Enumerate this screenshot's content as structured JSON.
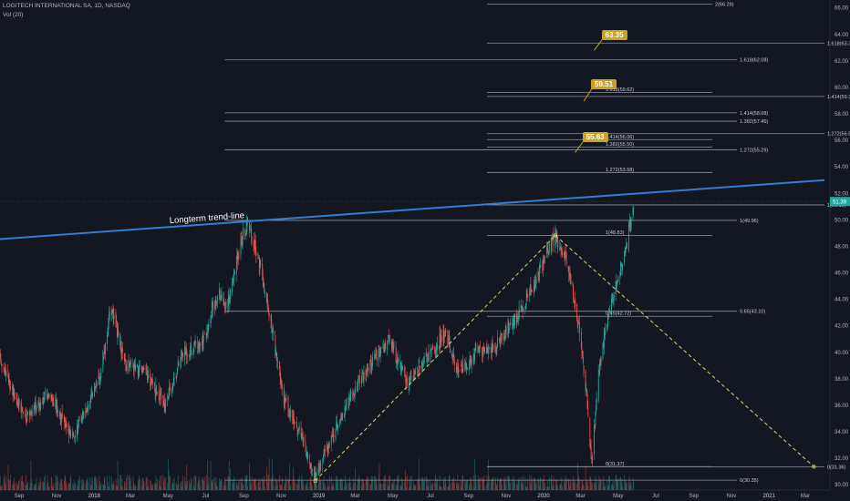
{
  "header": {
    "symbol_line": "LOGITECH INTERNATIONAL SA, 1D, NASDAQ",
    "volume_line": "Vol (20)"
  },
  "colors": {
    "background": "#131722",
    "up": "#26a69a",
    "down": "#ef5350",
    "trend_line": "#2f7fd3",
    "fib_line": "#9aa0a8",
    "callout": "#c9a227",
    "triangle": "#e6d46a",
    "last_price_tag": "#26a69a"
  },
  "chart_data": {
    "type": "candlestick",
    "title": "LOGITECH INTERNATIONAL SA, 1D, NASDAQ",
    "price_axis": {
      "min": 29.6,
      "max": 66.6,
      "ticks": [
        30,
        32,
        34,
        36,
        38,
        40,
        42,
        44,
        46,
        48,
        50,
        52,
        54,
        56,
        58,
        60,
        62,
        64,
        66
      ]
    },
    "time_axis": {
      "labels": [
        "Sep",
        "Nov",
        "2018",
        "Mar",
        "May",
        "Jul",
        "Sep",
        "Nov",
        "2019",
        "Mar",
        "May",
        "Jul",
        "Sep",
        "Nov",
        "2020",
        "Mar",
        "May",
        "Jul",
        "Sep",
        "Nov",
        "2021",
        "Mar"
      ]
    },
    "last_price": {
      "value": 51.39,
      "label": "51.39"
    },
    "price_path": [
      {
        "date": "2017-08-01",
        "close": 39.5
      },
      {
        "date": "2017-09-10",
        "close": 35.0
      },
      {
        "date": "2017-10-20",
        "close": 37.0
      },
      {
        "date": "2017-11-25",
        "close": 33.5
      },
      {
        "date": "2018-01-10",
        "close": 38.0
      },
      {
        "date": "2018-01-28",
        "close": 43.5
      },
      {
        "date": "2018-02-20",
        "close": 39.0
      },
      {
        "date": "2018-03-25",
        "close": 38.5
      },
      {
        "date": "2018-04-25",
        "close": 36.0
      },
      {
        "date": "2018-05-25",
        "close": 40.0
      },
      {
        "date": "2018-06-25",
        "close": 40.5
      },
      {
        "date": "2018-07-20",
        "close": 44.5
      },
      {
        "date": "2018-08-05",
        "close": 43.5
      },
      {
        "date": "2018-08-25",
        "close": 48.0
      },
      {
        "date": "2018-09-07",
        "close": 49.9
      },
      {
        "date": "2018-09-25",
        "close": 47.0
      },
      {
        "date": "2018-10-15",
        "close": 42.0
      },
      {
        "date": "2018-11-05",
        "close": 36.5
      },
      {
        "date": "2018-12-01",
        "close": 34.0
      },
      {
        "date": "2018-12-24",
        "close": 30.5
      },
      {
        "date": "2019-01-25",
        "close": 34.0
      },
      {
        "date": "2019-03-15",
        "close": 38.5
      },
      {
        "date": "2019-04-25",
        "close": 41.0
      },
      {
        "date": "2019-05-25",
        "close": 37.5
      },
      {
        "date": "2019-06-25",
        "close": 39.5
      },
      {
        "date": "2019-07-25",
        "close": 41.5
      },
      {
        "date": "2019-08-15",
        "close": 38.5
      },
      {
        "date": "2019-09-15",
        "close": 40.0
      },
      {
        "date": "2019-10-15",
        "close": 40.5
      },
      {
        "date": "2019-11-15",
        "close": 42.5
      },
      {
        "date": "2019-12-15",
        "close": 45.0
      },
      {
        "date": "2020-01-20",
        "close": 48.8
      },
      {
        "date": "2020-02-10",
        "close": 46.5
      },
      {
        "date": "2020-02-25",
        "close": 42.5
      },
      {
        "date": "2020-03-10",
        "close": 37.0
      },
      {
        "date": "2020-03-19",
        "close": 31.5
      },
      {
        "date": "2020-03-30",
        "close": 38.5
      },
      {
        "date": "2020-04-15",
        "close": 43.0
      },
      {
        "date": "2020-04-30",
        "close": 45.5
      },
      {
        "date": "2020-05-15",
        "close": 48.0
      },
      {
        "date": "2020-05-26",
        "close": 51.4
      }
    ],
    "trend_line": {
      "label": "Longterm trend-line",
      "from": {
        "date": "2017-08-01",
        "price": 48.55
      },
      "to": {
        "date": "2021-04-01",
        "price": 53.0
      }
    },
    "triangle": [
      {
        "date": "2018-12-26",
        "price": 30.3
      },
      {
        "date": "2020-01-20",
        "price": 48.83
      },
      {
        "date": "2021-03-15",
        "price": 31.36
      }
    ],
    "fib_levels": [
      {
        "label": "2(66.29)",
        "price": 66.29,
        "from": "2019-10-01",
        "to": "2020-10-01",
        "label_side": "end"
      },
      {
        "label": "1.618(63.35)",
        "price": 63.35,
        "from": "2019-10-01",
        "to": "2021-04-01",
        "label_side": "end"
      },
      {
        "label": "1.618(62.08)",
        "price": 62.08,
        "from": "2018-08-01",
        "to": "2020-11-10",
        "label_side": "end"
      },
      {
        "label": "1.618(59.62)",
        "price": 59.62,
        "from": "2019-10-01",
        "to": "2020-10-01",
        "label_side": "start"
      },
      {
        "label": "1.414(59.32)",
        "price": 59.32,
        "from": "2019-10-01",
        "to": "2021-04-01",
        "label_side": "end"
      },
      {
        "label": "1.414(58.08)",
        "price": 58.08,
        "from": "2018-08-01",
        "to": "2020-11-10",
        "label_side": "end"
      },
      {
        "label": "1.382(57.45)",
        "price": 57.45,
        "from": "2018-08-01",
        "to": "2020-11-10",
        "label_side": "end"
      },
      {
        "label": "1.272(56.51)",
        "price": 56.51,
        "from": "2019-10-01",
        "to": "2021-04-01",
        "label_side": "end"
      },
      {
        "label": "1.414(56.06)",
        "price": 56.06,
        "from": "2019-10-01",
        "to": "2020-10-01",
        "label_side": "start"
      },
      {
        "label": "1.382(55.50)",
        "price": 55.5,
        "from": "2019-10-01",
        "to": "2020-10-01",
        "label_side": "start"
      },
      {
        "label": "1.272(55.29)",
        "price": 55.29,
        "from": "2018-08-01",
        "to": "2020-11-10",
        "label_side": "end"
      },
      {
        "label": "1.272(53.58)",
        "price": 53.58,
        "from": "2019-10-01",
        "to": "2020-10-01",
        "label_side": "start"
      },
      {
        "label": "1(51.13)",
        "price": 51.13,
        "from": "2019-10-01",
        "to": "2021-04-01",
        "label_side": "end"
      },
      {
        "label": "1(49.96)",
        "price": 49.96,
        "from": "2018-08-01",
        "to": "2020-11-10",
        "label_side": "end"
      },
      {
        "label": "1(48.83)",
        "price": 48.83,
        "from": "2019-10-01",
        "to": "2020-10-01",
        "label_side": "start"
      },
      {
        "label": "0.65(43.10)",
        "price": 43.1,
        "from": "2018-08-01",
        "to": "2020-11-10",
        "label_side": "end"
      },
      {
        "label": "0.65(42.72)",
        "price": 42.72,
        "from": "2019-10-01",
        "to": "2020-10-01",
        "label_side": "start"
      },
      {
        "label": "0(31.37)",
        "price": 31.37,
        "from": "2019-10-01",
        "to": "2020-10-01",
        "label_side": "start"
      },
      {
        "label": "0(31.36)",
        "price": 31.36,
        "from": "2019-10-01",
        "to": "2021-04-01",
        "label_side": "end"
      },
      {
        "label": "0(30.35)",
        "price": 30.35,
        "from": "2018-08-01",
        "to": "2020-11-10",
        "label_side": "end"
      }
    ],
    "callouts": [
      {
        "label": "63.35",
        "date": "2020-04-01",
        "price": 63.35,
        "text_price": 64.0
      },
      {
        "label": "59.51",
        "date": "2020-03-15",
        "price": 59.51,
        "text_price": 60.3
      },
      {
        "label": "55.63",
        "date": "2020-03-01",
        "price": 55.63,
        "text_price": 56.3
      }
    ]
  }
}
